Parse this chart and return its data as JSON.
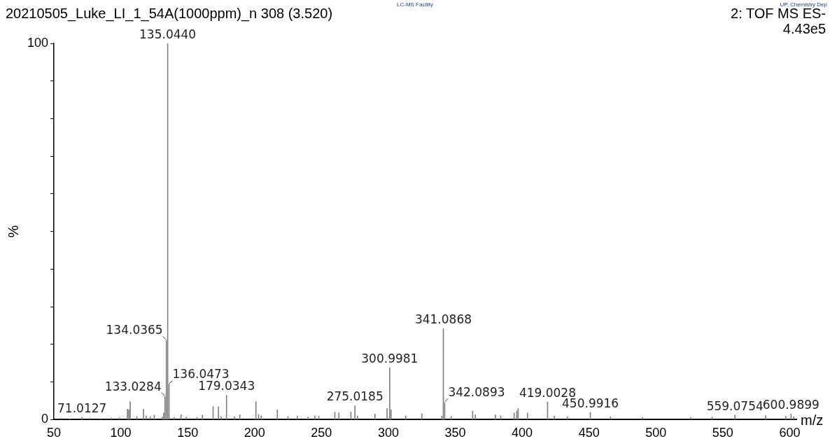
{
  "chart_data": {
    "type": "bar",
    "title": "20210505_Luke_LI_1_54A(1000ppm)_n 308 (3.520)",
    "xlabel": "m/z",
    "ylabel": "%",
    "annotations": [
      "LC-MS Facility",
      "UP, Chemistry Dep",
      "2: TOF MS ES-",
      "4.43e5",
      {
        "text": "71.0127",
        "x": 71.0127,
        "y": 0.6
      },
      {
        "text": "133.0284",
        "x": 133.0284,
        "y": 6.1
      },
      {
        "text": "134.0365",
        "x": 134.0365,
        "y": 21
      },
      {
        "text": "135.0440",
        "x": 135.044,
        "y": 100
      },
      {
        "text": "136.0473",
        "x": 136.0473,
        "y": 9.3
      },
      {
        "text": "179.0343",
        "x": 179.0343,
        "y": 6.5
      },
      {
        "text": "275.0185",
        "x": 275.0185,
        "y": 3.7
      },
      {
        "text": "300.9981",
        "x": 300.9981,
        "y": 13.8
      },
      {
        "text": "341.0868",
        "x": 341.0868,
        "y": 24.2
      },
      {
        "text": "342.0893",
        "x": 342.0893,
        "y": 4.5
      },
      {
        "text": "419.0028",
        "x": 419.0028,
        "y": 4.7
      },
      {
        "text": "450.9916",
        "x": 450.9916,
        "y": 1.9
      },
      {
        "text": "559.0754",
        "x": 559.0754,
        "y": 1.2
      },
      {
        "text": "600.9899",
        "x": 600.9899,
        "y": 1.5
      }
    ],
    "x": [
      55,
      62,
      71.0127,
      77,
      85,
      93,
      99,
      105,
      106,
      107,
      112,
      117,
      119,
      122,
      125,
      131,
      132,
      133.0284,
      134.0365,
      135.044,
      136.0473,
      140,
      145,
      149,
      157,
      161,
      169,
      173,
      175,
      179.0343,
      185,
      189,
      201,
      203,
      205,
      217,
      225,
      232,
      240,
      245,
      248,
      260,
      263,
      272,
      275.0185,
      277,
      290,
      299,
      300.9981,
      302,
      313,
      325,
      340,
      341.0868,
      342.0893,
      347,
      363,
      365,
      380,
      384,
      394,
      396,
      397,
      404,
      419.0028,
      424,
      434,
      450.9916,
      466,
      490,
      526,
      542,
      559.0754,
      582,
      597,
      600.9899,
      603
    ],
    "values": [
      0.4,
      0.3,
      0.6,
      0.4,
      0.3,
      0.5,
      0.5,
      2.8,
      2.6,
      4.8,
      0.8,
      2.8,
      1.0,
      0.8,
      1.2,
      0.7,
      1.8,
      6.1,
      21,
      100,
      9.3,
      0.6,
      1.3,
      0.7,
      0.6,
      1.2,
      3.5,
      3.4,
      0.8,
      6.5,
      0.8,
      1.3,
      4.8,
      1.4,
      1.0,
      2.6,
      0.8,
      1.0,
      0.7,
      1.0,
      1.0,
      2.0,
      1.8,
      2.0,
      3.7,
      1.0,
      1.5,
      3.0,
      13.8,
      2.6,
      1.0,
      1.6,
      1.0,
      24.2,
      4.5,
      0.9,
      2.3,
      1.3,
      1.3,
      1.1,
      1.8,
      2.3,
      3.0,
      1.8,
      4.7,
      1.0,
      0.8,
      1.9,
      0.8,
      0.6,
      0.6,
      0.7,
      1.2,
      1.1,
      0.9,
      1.5,
      0.8
    ],
    "color": "#808080",
    "xlim": [
      50,
      605
    ],
    "xticks": [
      50,
      100,
      150,
      200,
      250,
      300,
      350,
      400,
      450,
      500,
      550,
      600
    ],
    "ylim": [
      0,
      100
    ],
    "yticks": [
      0,
      {
        "value": 10,
        "label": null
      },
      {
        "value": 20,
        "label": null
      },
      {
        "value": 30,
        "label": null
      },
      {
        "value": 40,
        "label": null
      },
      {
        "value": 50,
        "label": null
      },
      {
        "value": 60,
        "label": null
      },
      {
        "value": 70,
        "label": null
      },
      {
        "value": 80,
        "label": null
      },
      {
        "value": 90,
        "label": null
      },
      100
    ],
    "grid": false,
    "legend": false
  }
}
